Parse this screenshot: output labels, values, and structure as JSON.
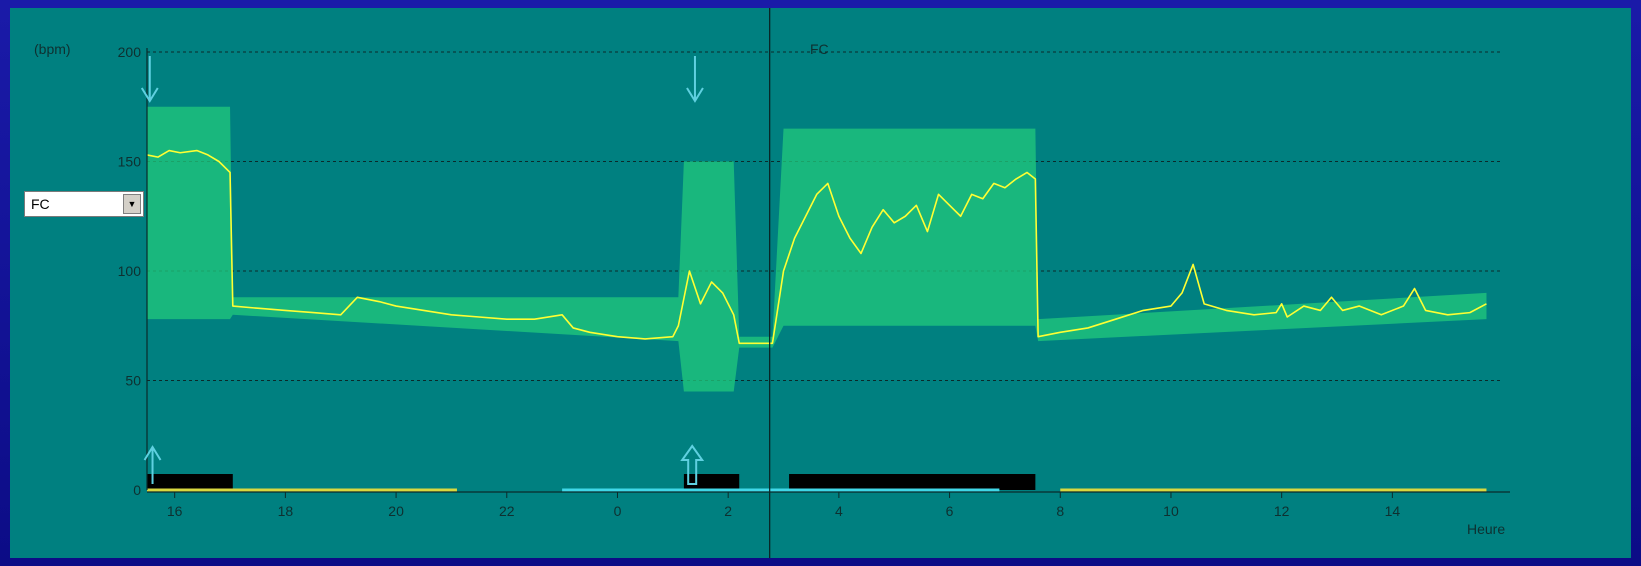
{
  "selector": {
    "value": "FC",
    "arrow_glyph": "▼"
  },
  "chart_data": {
    "type": "line",
    "title": "FC",
    "ylabel": "(bpm)",
    "xlabel": "Heure",
    "ylim": [
      0,
      200
    ],
    "xlim": [
      15.5,
      39.8
    ],
    "yticks": [
      0,
      50,
      100,
      150,
      200
    ],
    "xticks": [
      16,
      18,
      20,
      22,
      24,
      26,
      28,
      30,
      32,
      34,
      36,
      38
    ],
    "xtick_labels": [
      "16",
      "18",
      "20",
      "22",
      "0",
      "2",
      "4",
      "6",
      "8",
      "10",
      "12",
      "14"
    ],
    "grid": "horizontal dashed",
    "cursor_x": 26.75,
    "markers": [
      {
        "x": 15.55,
        "kind": "down-arrow-top"
      },
      {
        "x": 25.4,
        "kind": "down-arrow-top"
      },
      {
        "x": 15.6,
        "kind": "up-arrow-bottom"
      },
      {
        "x": 25.35,
        "kind": "up-arrow-bottom-outline"
      }
    ],
    "series": [
      {
        "name": "FC",
        "color": "#ffff33",
        "x": [
          15.5,
          15.7,
          15.9,
          16.1,
          16.4,
          16.6,
          16.8,
          17.0,
          17.05,
          17.5,
          18.0,
          18.5,
          19.0,
          19.3,
          19.7,
          20.0,
          20.5,
          21.0,
          21.5,
          22.0,
          22.5,
          23.0,
          23.2,
          23.5,
          24.0,
          24.5,
          25.0,
          25.1,
          25.3,
          25.5,
          25.7,
          25.9,
          26.1,
          26.2,
          26.5,
          26.8,
          27.0,
          27.2,
          27.4,
          27.6,
          27.8,
          28.0,
          28.2,
          28.4,
          28.6,
          28.8,
          29.0,
          29.2,
          29.4,
          29.6,
          29.8,
          30.0,
          30.2,
          30.4,
          30.6,
          30.8,
          31.0,
          31.2,
          31.4,
          31.55,
          31.6,
          32.0,
          32.5,
          33.0,
          33.5,
          34.0,
          34.2,
          34.4,
          34.6,
          35.0,
          35.5,
          35.9,
          36.0,
          36.1,
          36.4,
          36.7,
          36.9,
          37.1,
          37.4,
          37.8,
          38.2,
          38.4,
          38.6,
          39.0,
          39.4,
          39.7
        ],
        "y": [
          153,
          152,
          155,
          154,
          155,
          153,
          150,
          145,
          84,
          83,
          82,
          81,
          80,
          88,
          86,
          84,
          82,
          80,
          79,
          78,
          78,
          80,
          74,
          72,
          70,
          69,
          70,
          75,
          100,
          85,
          95,
          90,
          80,
          67,
          67,
          67,
          100,
          115,
          125,
          135,
          140,
          125,
          115,
          108,
          120,
          128,
          122,
          125,
          130,
          118,
          135,
          130,
          125,
          135,
          133,
          140,
          138,
          142,
          145,
          142,
          70,
          72,
          74,
          78,
          82,
          84,
          90,
          103,
          85,
          82,
          80,
          81,
          85,
          79,
          84,
          82,
          88,
          82,
          84,
          80,
          84,
          92,
          82,
          80,
          81,
          85
        ]
      }
    ],
    "bands": [
      {
        "name": "upper-envelope",
        "color": "#22c97c",
        "x": [
          15.5,
          17.0,
          17.05,
          25.1,
          25.2,
          26.1,
          26.2,
          26.8,
          27.0,
          31.55,
          31.6,
          39.7
        ],
        "y": [
          175,
          175,
          88,
          88,
          150,
          150,
          70,
          70,
          165,
          165,
          78,
          90
        ]
      },
      {
        "name": "lower-envelope",
        "color": "#22c97c",
        "x": [
          15.5,
          17.0,
          17.05,
          25.1,
          25.2,
          26.1,
          26.2,
          26.8,
          27.0,
          31.55,
          31.6,
          39.7
        ],
        "y": [
          78,
          78,
          80,
          68,
          45,
          45,
          65,
          65,
          75,
          75,
          68,
          78
        ]
      }
    ],
    "activity_bars": [
      {
        "start": 15.5,
        "end": 17.05,
        "color": "#000000"
      },
      {
        "start": 25.2,
        "end": 26.2,
        "color": "#000000"
      },
      {
        "start": 27.1,
        "end": 31.55,
        "color": "#000000"
      }
    ],
    "period_lines": [
      {
        "start": 15.5,
        "end": 21.1,
        "color": "#d8d840"
      },
      {
        "start": 23.0,
        "end": 30.9,
        "color": "#40d8e8"
      },
      {
        "start": 32.0,
        "end": 39.7,
        "color": "#d8d840"
      }
    ]
  }
}
